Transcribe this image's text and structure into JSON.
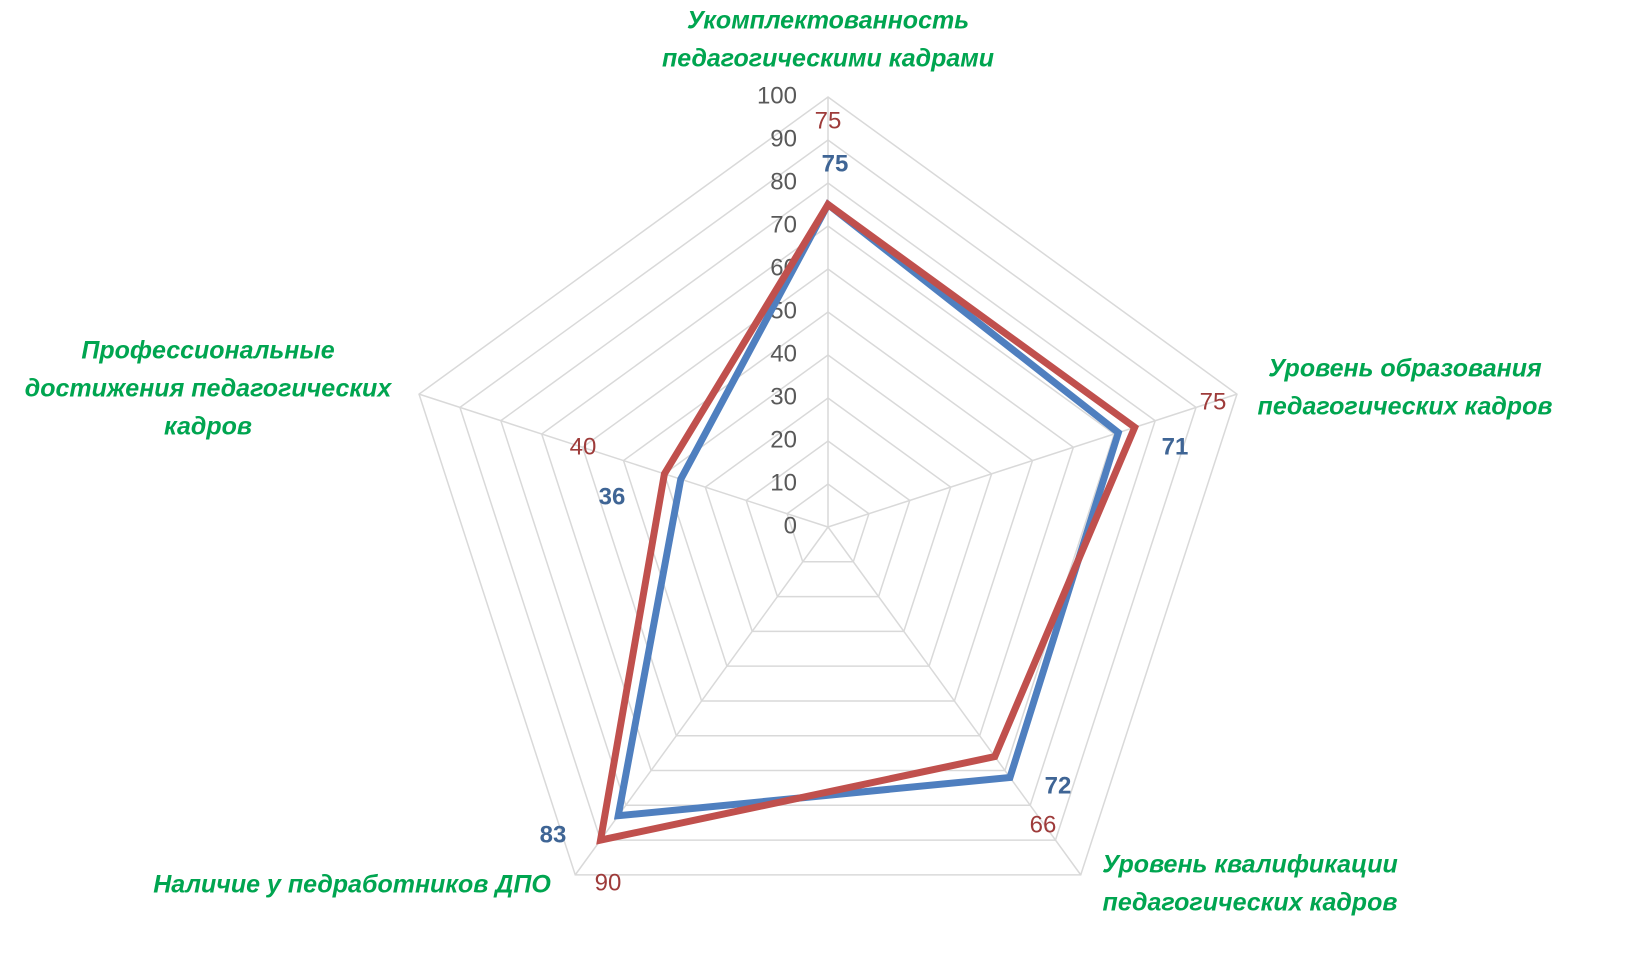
{
  "chart_data": {
    "type": "radar",
    "categories": [
      [
        "Укомплектованность",
        "педагогическими кадрами"
      ],
      [
        "Уровень образования",
        "педагогических кадров"
      ],
      [
        "Уровень квалификации",
        "педагогических кадров"
      ],
      [
        "Наличие у педработников ДПО"
      ],
      [
        "Профессиональные",
        "достижения педагогических",
        "кадров"
      ]
    ],
    "series": [
      {
        "color": "#4f7fbf",
        "values": [
          75,
          71,
          72,
          83,
          36
        ]
      },
      {
        "color": "#c0504d",
        "values": [
          75,
          75,
          66,
          90,
          40
        ]
      }
    ],
    "ylim": [
      0,
      100
    ],
    "yticks": [
      0,
      10,
      20,
      30,
      40,
      50,
      60,
      70,
      80,
      90,
      100
    ],
    "grid": true,
    "category_color": "#00a550"
  }
}
